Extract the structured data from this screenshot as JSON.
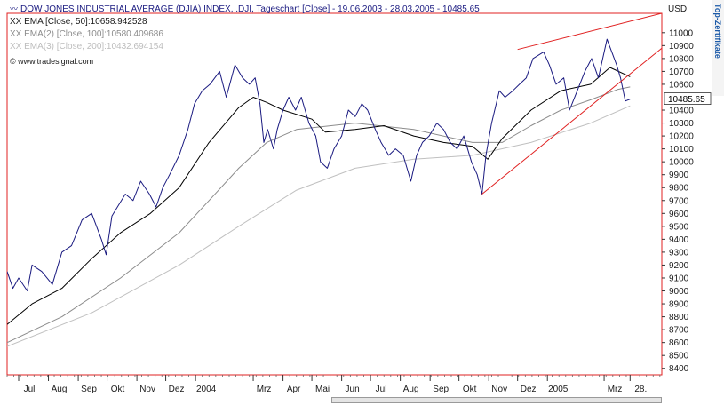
{
  "legend": {
    "title": "DOW JONES INDUSTRIAL AVERAGE (DJIA) INDEX, .DJI, Tageschart [Close] - 19.06.2003 - 28.03.2005 - 10485.65",
    "ema50": "XX EMA [Close, 50]:10658.942528",
    "ema100": "XX EMA(2) [Close, 100]:10580.409686",
    "ema200": "XX EMA(3) [Close, 200]:10432.694154",
    "source": "© www.tradesignal.com"
  },
  "currency": "USD",
  "side_tab_text": "Top-Zertifikate",
  "colors": {
    "price": "#1a1a80",
    "ema50": "#000000",
    "ema100": "#8c8c8c",
    "ema200": "#c0c0c0",
    "trendline": "#e02020",
    "frame": "#e02020",
    "last_value_box": "#ffffff"
  },
  "chart_data": {
    "type": "line",
    "title": "DOW JONES INDUSTRIAL AVERAGE (DJIA) INDEX, .DJI, Tageschart [Close] - 19.06.2003 - 28.03.2005 - 10485.65",
    "xlabel": "",
    "ylabel": "USD",
    "ylim": [
      8350,
      11150
    ],
    "x_range": [
      "2003-06-19",
      "2005-04-30"
    ],
    "y_ticks": [
      8400,
      8500,
      8600,
      8700,
      8800,
      8900,
      9000,
      9100,
      9200,
      9300,
      9400,
      9500,
      9600,
      9700,
      9800,
      9900,
      10000,
      10100,
      10200,
      10300,
      10400,
      10600,
      10700,
      10800,
      10900,
      11000
    ],
    "last_value_label": "10485.65",
    "x_tick_labels": [
      {
        "label": "Jul",
        "date": "2003-07-01"
      },
      {
        "label": "Aug",
        "date": "2003-08-01"
      },
      {
        "label": "Sep",
        "date": "2003-09-01"
      },
      {
        "label": "Okt",
        "date": "2003-10-01"
      },
      {
        "label": "Nov",
        "date": "2003-11-01"
      },
      {
        "label": "Dez",
        "date": "2003-12-01"
      },
      {
        "label": "2004",
        "date": "2004-01-01"
      },
      {
        "label": "Mrz",
        "date": "2004-03-01"
      },
      {
        "label": "Apr",
        "date": "2004-04-01"
      },
      {
        "label": "Mai",
        "date": "2004-05-01"
      },
      {
        "label": "Jun",
        "date": "2004-06-01"
      },
      {
        "label": "Jul",
        "date": "2004-07-01"
      },
      {
        "label": "Aug",
        "date": "2004-08-01"
      },
      {
        "label": "Sep",
        "date": "2004-09-01"
      },
      {
        "label": "Okt",
        "date": "2004-10-01"
      },
      {
        "label": "Nov",
        "date": "2004-11-01"
      },
      {
        "label": "Dez",
        "date": "2004-12-01"
      },
      {
        "label": "2005",
        "date": "2005-01-01"
      },
      {
        "label": "Mrz",
        "date": "2005-03-01"
      },
      {
        "label": "28.",
        "date": "2005-03-28"
      }
    ],
    "series": [
      {
        "name": "DOW JONES INDUSTRIAL AVERAGE (DJIA) INDEX",
        "style": "price",
        "points": [
          [
            "2003-06-19",
            9150
          ],
          [
            "2003-06-25",
            9020
          ],
          [
            "2003-07-01",
            9100
          ],
          [
            "2003-07-10",
            9000
          ],
          [
            "2003-07-15",
            9200
          ],
          [
            "2003-07-25",
            9150
          ],
          [
            "2003-08-05",
            9050
          ],
          [
            "2003-08-15",
            9300
          ],
          [
            "2003-08-25",
            9350
          ],
          [
            "2003-09-05",
            9550
          ],
          [
            "2003-09-15",
            9600
          ],
          [
            "2003-09-25",
            9400
          ],
          [
            "2003-09-30",
            9280
          ],
          [
            "2003-10-06",
            9580
          ],
          [
            "2003-10-20",
            9750
          ],
          [
            "2003-10-28",
            9700
          ],
          [
            "2003-11-05",
            9850
          ],
          [
            "2003-11-14",
            9750
          ],
          [
            "2003-11-21",
            9650
          ],
          [
            "2003-11-28",
            9800
          ],
          [
            "2003-12-05",
            9900
          ],
          [
            "2003-12-15",
            10050
          ],
          [
            "2003-12-24",
            10250
          ],
          [
            "2003-12-31",
            10450
          ],
          [
            "2004-01-08",
            10550
          ],
          [
            "2004-01-16",
            10600
          ],
          [
            "2004-01-26",
            10700
          ],
          [
            "2004-02-02",
            10500
          ],
          [
            "2004-02-11",
            10750
          ],
          [
            "2004-02-19",
            10650
          ],
          [
            "2004-02-26",
            10600
          ],
          [
            "2004-03-03",
            10650
          ],
          [
            "2004-03-08",
            10450
          ],
          [
            "2004-03-12",
            10150
          ],
          [
            "2004-03-16",
            10250
          ],
          [
            "2004-03-22",
            10100
          ],
          [
            "2004-03-26",
            10250
          ],
          [
            "2004-04-01",
            10400
          ],
          [
            "2004-04-07",
            10500
          ],
          [
            "2004-04-14",
            10400
          ],
          [
            "2004-04-20",
            10500
          ],
          [
            "2004-04-28",
            10300
          ],
          [
            "2004-05-05",
            10200
          ],
          [
            "2004-05-10",
            10000
          ],
          [
            "2004-05-17",
            9950
          ],
          [
            "2004-05-24",
            10100
          ],
          [
            "2004-06-01",
            10200
          ],
          [
            "2004-06-08",
            10400
          ],
          [
            "2004-06-15",
            10350
          ],
          [
            "2004-06-22",
            10450
          ],
          [
            "2004-06-28",
            10400
          ],
          [
            "2004-07-06",
            10250
          ],
          [
            "2004-07-12",
            10150
          ],
          [
            "2004-07-20",
            10050
          ],
          [
            "2004-07-27",
            10100
          ],
          [
            "2004-08-04",
            10050
          ],
          [
            "2004-08-12",
            9850
          ],
          [
            "2004-08-18",
            10050
          ],
          [
            "2004-08-24",
            10150
          ],
          [
            "2004-08-31",
            10200
          ],
          [
            "2004-09-08",
            10300
          ],
          [
            "2004-09-15",
            10250
          ],
          [
            "2004-09-22",
            10150
          ],
          [
            "2004-09-29",
            10100
          ],
          [
            "2004-10-06",
            10200
          ],
          [
            "2004-10-14",
            10000
          ],
          [
            "2004-10-20",
            9900
          ],
          [
            "2004-10-25",
            9750
          ],
          [
            "2004-10-29",
            10050
          ],
          [
            "2004-11-04",
            10300
          ],
          [
            "2004-11-12",
            10550
          ],
          [
            "2004-11-18",
            10500
          ],
          [
            "2004-11-26",
            10550
          ],
          [
            "2004-12-03",
            10600
          ],
          [
            "2004-12-10",
            10650
          ],
          [
            "2004-12-17",
            10800
          ],
          [
            "2004-12-28",
            10850
          ],
          [
            "2005-01-03",
            10750
          ],
          [
            "2005-01-10",
            10600
          ],
          [
            "2005-01-18",
            10650
          ],
          [
            "2005-01-24",
            10400
          ],
          [
            "2005-02-01",
            10550
          ],
          [
            "2005-02-09",
            10700
          ],
          [
            "2005-02-16",
            10800
          ],
          [
            "2005-02-23",
            10650
          ],
          [
            "2005-03-01",
            10850
          ],
          [
            "2005-03-04",
            10950
          ],
          [
            "2005-03-09",
            10850
          ],
          [
            "2005-03-14",
            10750
          ],
          [
            "2005-03-18",
            10650
          ],
          [
            "2005-03-23",
            10470
          ],
          [
            "2005-03-28",
            10485.65
          ]
        ]
      },
      {
        "name": "XX EMA [Close, 50]",
        "style": "ema50",
        "points": [
          [
            "2003-06-19",
            8740
          ],
          [
            "2003-07-15",
            8900
          ],
          [
            "2003-08-15",
            9020
          ],
          [
            "2003-09-15",
            9250
          ],
          [
            "2003-10-15",
            9450
          ],
          [
            "2003-11-15",
            9600
          ],
          [
            "2003-12-15",
            9800
          ],
          [
            "2004-01-15",
            10150
          ],
          [
            "2004-02-15",
            10420
          ],
          [
            "2004-03-01",
            10500
          ],
          [
            "2004-03-15",
            10460
          ],
          [
            "2004-04-01",
            10400
          ],
          [
            "2004-05-01",
            10330
          ],
          [
            "2004-05-15",
            10230
          ],
          [
            "2004-06-15",
            10250
          ],
          [
            "2004-07-15",
            10280
          ],
          [
            "2004-08-15",
            10200
          ],
          [
            "2004-09-15",
            10150
          ],
          [
            "2004-10-15",
            10120
          ],
          [
            "2004-10-31",
            10020
          ],
          [
            "2004-11-15",
            10180
          ],
          [
            "2004-12-15",
            10400
          ],
          [
            "2005-01-15",
            10550
          ],
          [
            "2005-02-15",
            10600
          ],
          [
            "2005-03-07",
            10730
          ],
          [
            "2005-03-28",
            10659
          ]
        ]
      },
      {
        "name": "XX EMA(2) [Close, 100]",
        "style": "ema100",
        "points": [
          [
            "2003-06-19",
            8600
          ],
          [
            "2003-08-15",
            8800
          ],
          [
            "2003-10-15",
            9100
          ],
          [
            "2003-12-15",
            9450
          ],
          [
            "2004-01-15",
            9700
          ],
          [
            "2004-02-15",
            9950
          ],
          [
            "2004-03-15",
            10150
          ],
          [
            "2004-04-15",
            10250
          ],
          [
            "2004-06-15",
            10300
          ],
          [
            "2004-08-15",
            10250
          ],
          [
            "2004-10-15",
            10150
          ],
          [
            "2004-11-15",
            10150
          ],
          [
            "2004-12-15",
            10280
          ],
          [
            "2005-01-15",
            10400
          ],
          [
            "2005-02-15",
            10480
          ],
          [
            "2005-03-15",
            10560
          ],
          [
            "2005-03-28",
            10580
          ]
        ]
      },
      {
        "name": "XX EMA(3) [Close, 200]",
        "style": "ema200",
        "points": [
          [
            "2003-06-19",
            8570
          ],
          [
            "2003-09-15",
            8830
          ],
          [
            "2003-12-15",
            9200
          ],
          [
            "2004-02-15",
            9500
          ],
          [
            "2004-04-15",
            9780
          ],
          [
            "2004-06-15",
            9950
          ],
          [
            "2004-08-15",
            10020
          ],
          [
            "2004-10-15",
            10050
          ],
          [
            "2004-12-15",
            10150
          ],
          [
            "2005-02-15",
            10300
          ],
          [
            "2005-03-28",
            10433
          ]
        ]
      }
    ],
    "trendlines": [
      {
        "from": [
          "2004-12-01",
          10870
        ],
        "to": [
          "2005-04-30",
          11150
        ]
      },
      {
        "from": [
          "2004-10-25",
          9750
        ],
        "to": [
          "2005-04-30",
          10880
        ]
      }
    ],
    "grid": false,
    "legend_position": "top-left"
  }
}
